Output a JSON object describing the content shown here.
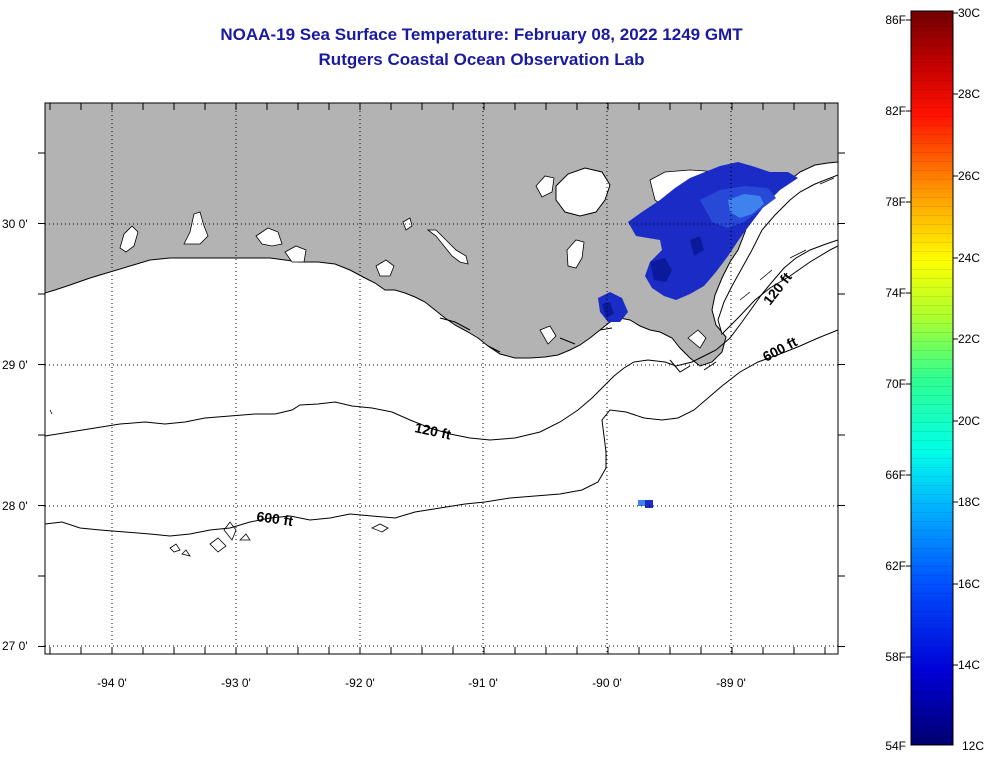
{
  "title": {
    "line1": "NOAA-19 Sea Surface Temperature:  February 08, 2022 1249 GMT",
    "line2": "Rutgers Coastal Ocean Observation Lab"
  },
  "map": {
    "land_color": "#b3b3b3",
    "sea_color": "#ffffff",
    "latitude_labels": [
      "30 0'",
      "29 0'",
      "28 0'",
      "27 0'"
    ],
    "longitude_labels": [
      "-94 0'",
      "-93 0'",
      "-92 0'",
      "-91 0'",
      "-90 0'",
      "-89 0'"
    ],
    "contour_labels": {
      "inner_120_west": "120 ft",
      "inner_120_east": "120 ft",
      "outer_600_west": "600 ft",
      "outer_600_east": "600 ft"
    },
    "sst_data_color": "#1a2bc0"
  },
  "colorbar": {
    "fahrenheit_labels": [
      "86F",
      "82F",
      "78F",
      "74F",
      "70F",
      "66F",
      "62F",
      "58F",
      "54F"
    ],
    "celsius_labels": [
      "30C",
      "28C",
      "26C",
      "24C",
      "22C",
      "20C",
      "18C",
      "16C",
      "14C",
      "12C"
    ],
    "gradient_colors": [
      "#000080",
      "#0000ff",
      "#0080ff",
      "#00e0ff",
      "#40ffc0",
      "#a0ff60",
      "#ffff00",
      "#ff8000",
      "#ff0000",
      "#a00000",
      "#700000"
    ]
  }
}
